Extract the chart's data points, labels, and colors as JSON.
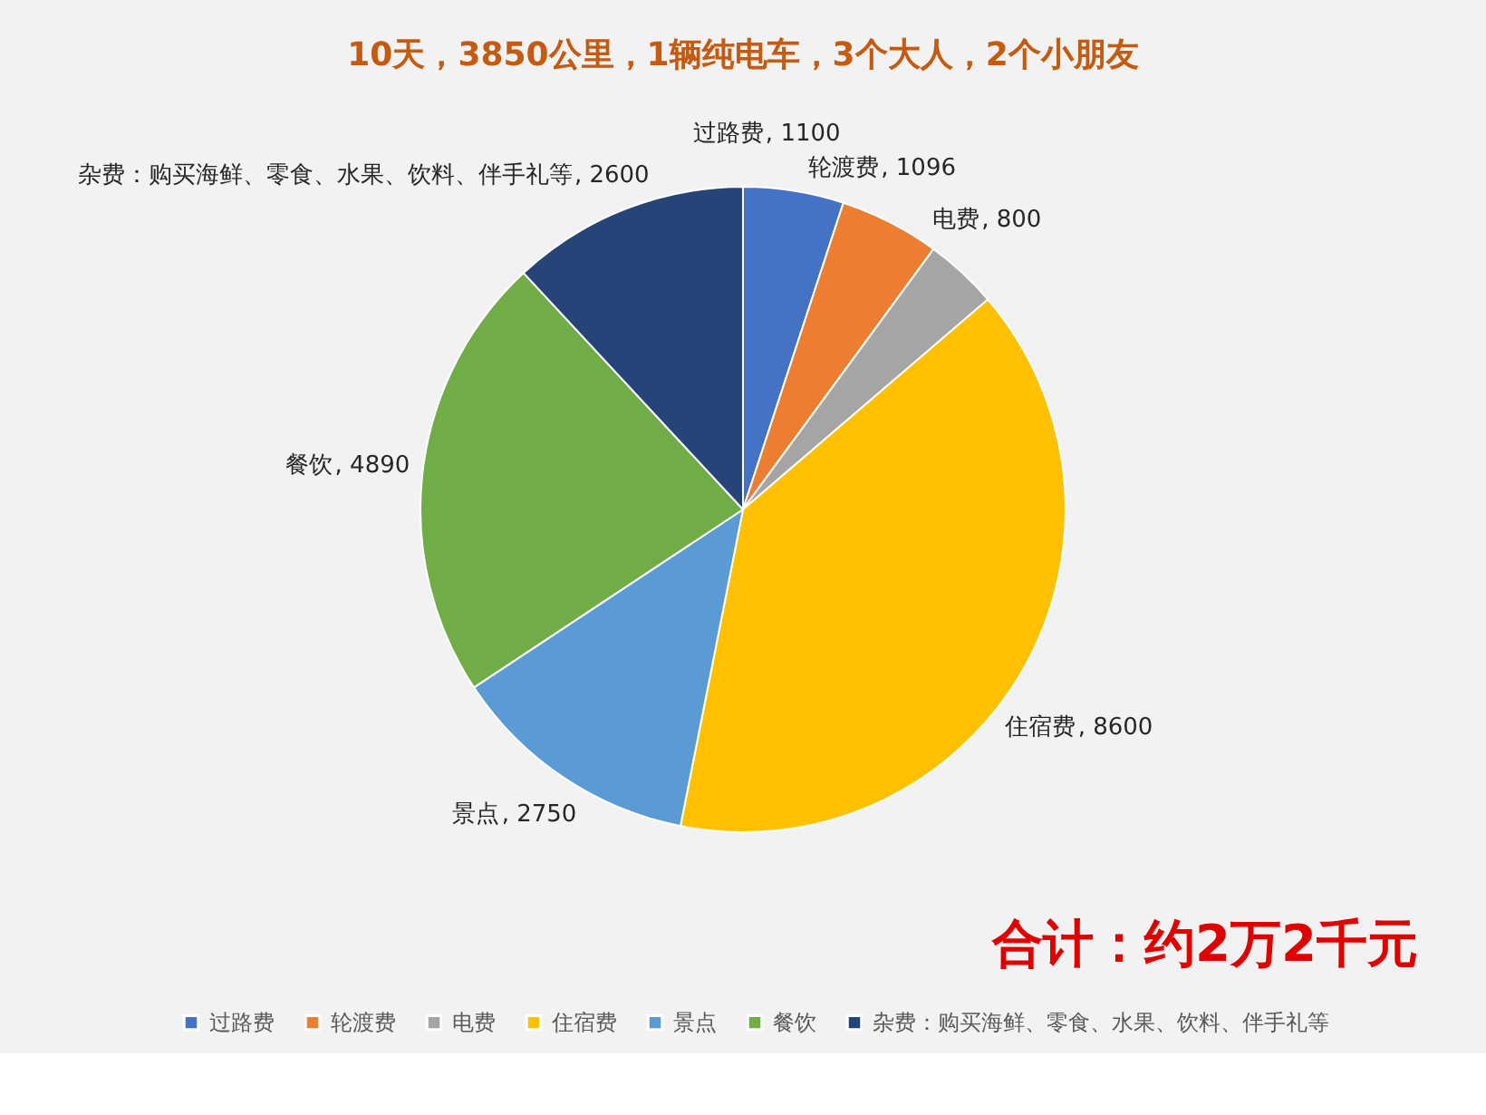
{
  "chart_data": {
    "type": "pie",
    "title": "10天，3850公里，1辆纯电车，3个大人，2个小朋友",
    "categories": [
      "过路费",
      "轮渡费",
      "电费",
      "住宿费",
      "景点",
      "餐饮",
      "杂费：购买海鲜、零食、水果、饮料、伴手礼等"
    ],
    "values": [
      1100,
      1096,
      800,
      8600,
      2750,
      4890,
      2600
    ],
    "value_labels": [
      ", 1100",
      ", 1096",
      ", 800",
      ", 8600",
      ", 2750",
      ", 4890",
      ", 2600"
    ],
    "colors": [
      "#4472c4",
      "#ed7d31",
      "#a5a5a5",
      "#ffc000",
      "#5b9bd5",
      "#70ad47",
      "#264478"
    ],
    "legend": "bottom",
    "annotations": [
      "合计：约2万2千元"
    ]
  }
}
